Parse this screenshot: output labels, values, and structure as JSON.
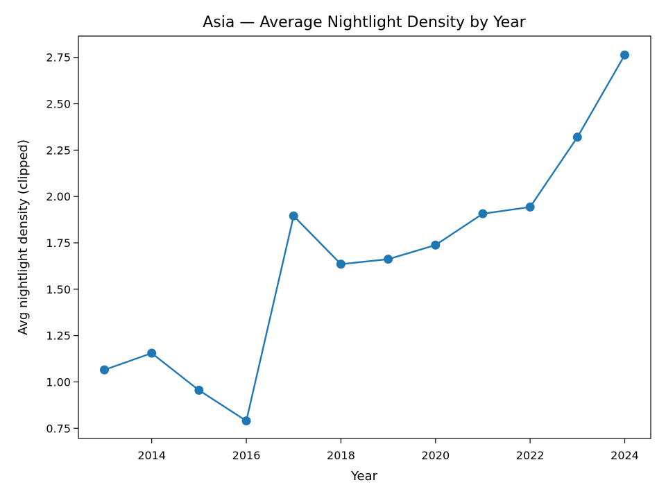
{
  "chart_data": {
    "type": "line",
    "title": "Asia — Average Nightlight Density by Year",
    "xlabel": "Year",
    "ylabel": "Avg nightlight density (clipped)",
    "xlim": [
      2012.45,
      2024.55
    ],
    "ylim": [
      0.695,
      2.865
    ],
    "xticks": [
      2014,
      2016,
      2018,
      2020,
      2022,
      2024
    ],
    "xtick_labels": [
      "2014",
      "2016",
      "2018",
      "2020",
      "2022",
      "2024"
    ],
    "yticks": [
      0.75,
      1.0,
      1.25,
      1.5,
      1.75,
      2.0,
      2.25,
      2.5,
      2.75
    ],
    "ytick_labels": [
      "0.75",
      "1.00",
      "1.25",
      "1.50",
      "1.75",
      "2.00",
      "2.25",
      "2.50",
      "2.75"
    ],
    "grid": false,
    "series": [
      {
        "color": "#1f77b4",
        "marker": "circle",
        "x": [
          2013,
          2014,
          2015,
          2016,
          2017,
          2018,
          2019,
          2020,
          2021,
          2022,
          2023,
          2024
        ],
        "y": [
          1.065,
          1.155,
          0.955,
          0.79,
          1.895,
          1.635,
          1.662,
          1.738,
          1.907,
          1.943,
          2.32,
          2.763
        ]
      }
    ]
  }
}
